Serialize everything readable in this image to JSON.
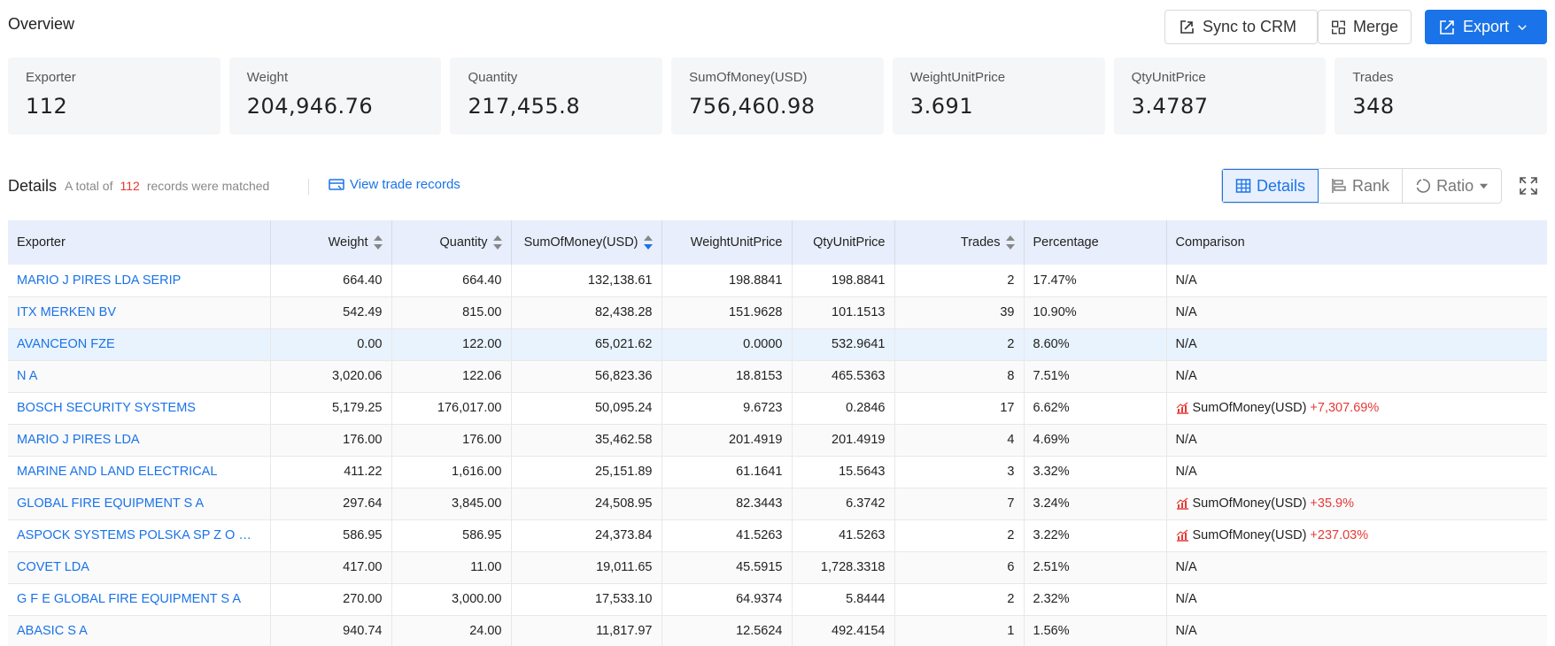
{
  "header": {
    "title": "Overview",
    "buttons": {
      "sync": "Sync to CRM",
      "merge": "Merge",
      "export": "Export"
    }
  },
  "stats": [
    {
      "label": "Exporter",
      "value": "112"
    },
    {
      "label": "Weight",
      "value": "204,946.76"
    },
    {
      "label": "Quantity",
      "value": "217,455.8"
    },
    {
      "label": "SumOfMoney(USD)",
      "value": "756,460.98"
    },
    {
      "label": "WeightUnitPrice",
      "value": "3.691"
    },
    {
      "label": "QtyUnitPrice",
      "value": "3.4787"
    },
    {
      "label": "Trades",
      "value": "348"
    }
  ],
  "details": {
    "title": "Details",
    "summary_prefix": "A total of",
    "summary_count": "112",
    "summary_suffix": "records were matched",
    "view_link": "View trade records",
    "views": [
      "Details",
      "Rank",
      "Ratio"
    ]
  },
  "table": {
    "columns": [
      "Exporter",
      "Weight",
      "Quantity",
      "SumOfMoney(USD)",
      "WeightUnitPrice",
      "QtyUnitPrice",
      "Trades",
      "Percentage",
      "Comparison"
    ],
    "rows": [
      [
        "MARIO J PIRES LDA SERIP",
        "664.40",
        "664.40",
        "132,138.61",
        "198.8841",
        "198.8841",
        "2",
        "17.47%",
        "N/A"
      ],
      [
        "ITX MERKEN BV",
        "542.49",
        "815.00",
        "82,438.28",
        "151.9628",
        "101.1513",
        "39",
        "10.90%",
        "N/A"
      ],
      [
        "AVANCEON FZE",
        "0.00",
        "122.00",
        "65,021.62",
        "0.0000",
        "532.9641",
        "2",
        "8.60%",
        "N/A"
      ],
      [
        "N A",
        "3,020.06",
        "122.06",
        "56,823.36",
        "18.8153",
        "465.5363",
        "8",
        "7.51%",
        "N/A"
      ],
      [
        "BOSCH SECURITY SYSTEMS",
        "5,179.25",
        "176,017.00",
        "50,095.24",
        "9.6723",
        "0.2846",
        "17",
        "6.62%",
        "SumOfMoney(USD)|+7,307.69%"
      ],
      [
        "MARIO J PIRES LDA",
        "176.00",
        "176.00",
        "35,462.58",
        "201.4919",
        "201.4919",
        "4",
        "4.69%",
        "N/A"
      ],
      [
        "MARINE AND LAND ELECTRICAL",
        "411.22",
        "1,616.00",
        "25,151.89",
        "61.1641",
        "15.5643",
        "3",
        "3.32%",
        "N/A"
      ],
      [
        "GLOBAL FIRE EQUIPMENT S A",
        "297.64",
        "3,845.00",
        "24,508.95",
        "82.3443",
        "6.3742",
        "7",
        "3.24%",
        "SumOfMoney(USD)|+35.9%"
      ],
      [
        "ASPOCK SYSTEMS POLSKA SP Z O O UL BY...",
        "586.95",
        "586.95",
        "24,373.84",
        "41.5263",
        "41.5263",
        "2",
        "3.22%",
        "SumOfMoney(USD)|+237.03%"
      ],
      [
        "COVET LDA",
        "417.00",
        "11.00",
        "19,011.65",
        "45.5915",
        "1,728.3318",
        "6",
        "2.51%",
        "N/A"
      ],
      [
        "G F E GLOBAL FIRE EQUIPMENT S A",
        "270.00",
        "3,000.00",
        "17,533.10",
        "64.9374",
        "5.8444",
        "2",
        "2.32%",
        "N/A"
      ],
      [
        "ABASIC S A",
        "940.74",
        "24.00",
        "11,817.97",
        "12.5624",
        "492.4154",
        "1",
        "1.56%",
        "N/A"
      ]
    ]
  }
}
